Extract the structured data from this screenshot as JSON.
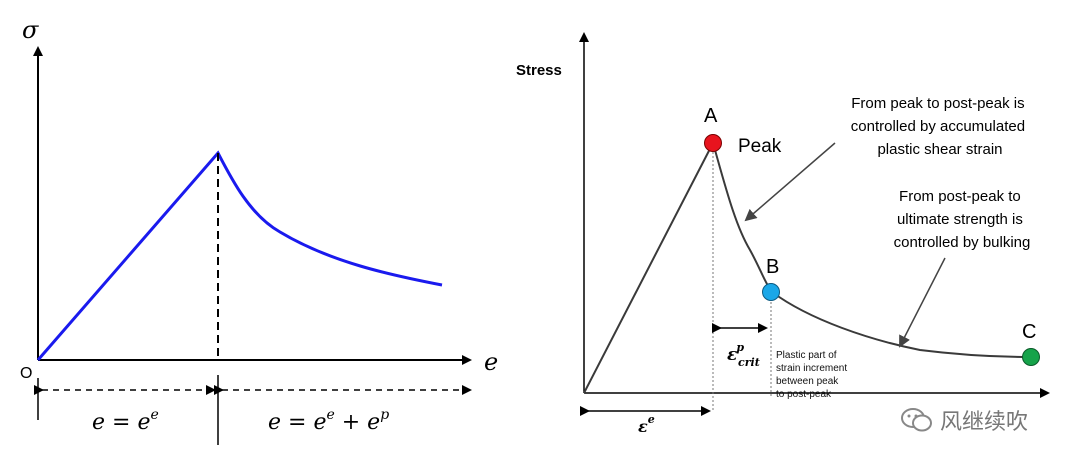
{
  "left_diagram": {
    "y_axis_symbol": "σ",
    "x_axis_symbol": "e",
    "origin_label": "O",
    "elastic_formula": "e = e",
    "elastic_sup": "e",
    "plastic_formula": "e = e",
    "plastic_sup1": "e",
    "plastic_plus": " + e",
    "plastic_sup2": "p",
    "colors": {
      "curve": "#1a1aee",
      "axis": "#000000"
    }
  },
  "right_diagram": {
    "y_axis_label": "Stress",
    "point_a_label": "A",
    "peak_label": "Peak",
    "point_b_label": "B",
    "point_c_label": "C",
    "annotation_1": [
      "From peak to post-peak is",
      "controlled by accumulated",
      "plastic shear strain"
    ],
    "annotation_2": [
      "From post-peak to",
      "ultimate strength is",
      "controlled by bulking"
    ],
    "plastic_note": [
      "Plastic part of",
      "strain increment",
      "between peak",
      "to post-peak"
    ],
    "eps_crit_symbol": "ε",
    "eps_crit_sup": "p",
    "eps_crit_sub": "crit",
    "eps_e_symbol": "ε",
    "eps_e_sup": "e",
    "colors": {
      "point_a": "#e8141e",
      "point_b": "#1aa7e8",
      "point_c": "#16a34a"
    }
  },
  "watermark": {
    "text": "风继续吹"
  }
}
